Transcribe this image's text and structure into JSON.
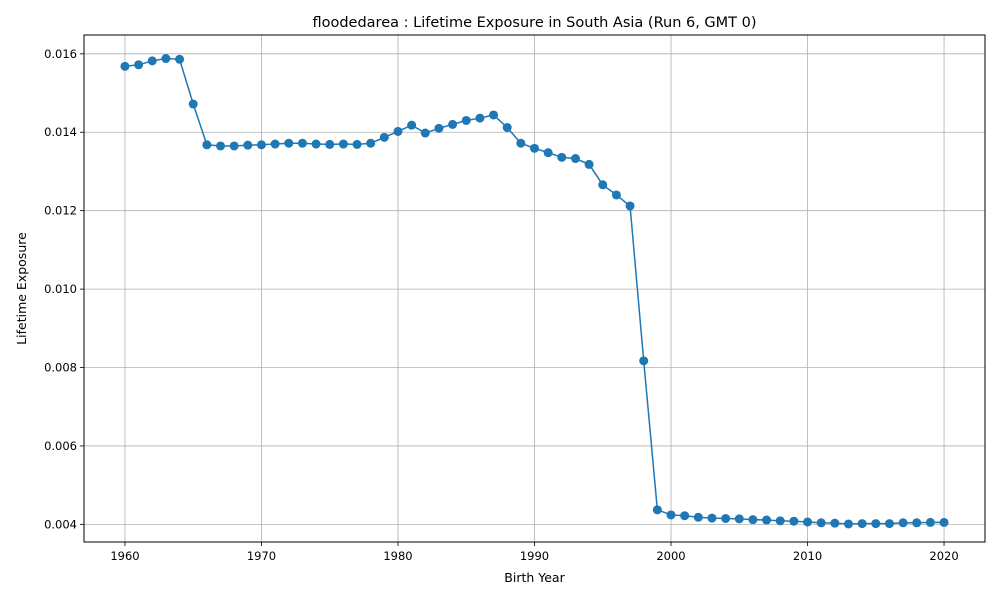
{
  "chart_data": {
    "type": "line",
    "title": "floodedarea : Lifetime Exposure in South Asia (Run 6, GMT 0)",
    "xlabel": "Birth Year",
    "ylabel": "Lifetime Exposure",
    "xlim": [
      1957,
      2023
    ],
    "ylim": [
      0.00355,
      0.01648
    ],
    "xticks": [
      1960,
      1970,
      1980,
      1990,
      2000,
      2010,
      2020
    ],
    "xtick_labels": [
      "1960",
      "1970",
      "1980",
      "1990",
      "2000",
      "2010",
      "2020"
    ],
    "yticks": [
      0.004,
      0.006,
      0.008,
      0.01,
      0.012,
      0.014,
      0.016
    ],
    "ytick_labels": [
      "0.004",
      "0.006",
      "0.008",
      "0.010",
      "0.012",
      "0.014",
      "0.016"
    ],
    "grid": true,
    "color": "#1f77b4",
    "marker": "circle",
    "x": [
      1960,
      1961,
      1962,
      1963,
      1964,
      1965,
      1966,
      1967,
      1968,
      1969,
      1970,
      1971,
      1972,
      1973,
      1974,
      1975,
      1976,
      1977,
      1978,
      1979,
      1980,
      1981,
      1982,
      1983,
      1984,
      1985,
      1986,
      1987,
      1988,
      1989,
      1990,
      1991,
      1992,
      1993,
      1994,
      1995,
      1996,
      1997,
      1998,
      1999,
      2000,
      2001,
      2002,
      2003,
      2004,
      2005,
      2006,
      2007,
      2008,
      2009,
      2010,
      2011,
      2012,
      2013,
      2014,
      2015,
      2016,
      2017,
      2018,
      2019,
      2020
    ],
    "y": [
      0.01568,
      0.01572,
      0.01582,
      0.01588,
      0.01586,
      0.01472,
      0.01368,
      0.01365,
      0.01365,
      0.01367,
      0.01368,
      0.0137,
      0.01372,
      0.01372,
      0.0137,
      0.01369,
      0.0137,
      0.01369,
      0.01372,
      0.01387,
      0.01402,
      0.01418,
      0.01398,
      0.0141,
      0.0142,
      0.0143,
      0.01436,
      0.01444,
      0.01412,
      0.01372,
      0.01359,
      0.01348,
      0.01336,
      0.01333,
      0.01318,
      0.01266,
      0.0124,
      0.01212,
      0.00817,
      0.00437,
      0.00424,
      0.00422,
      0.00418,
      0.00416,
      0.00415,
      0.00414,
      0.00412,
      0.00411,
      0.00409,
      0.00408,
      0.00406,
      0.00404,
      0.00403,
      0.00401,
      0.00402,
      0.00402,
      0.00402,
      0.00404,
      0.00404,
      0.00405,
      0.00405
    ]
  }
}
